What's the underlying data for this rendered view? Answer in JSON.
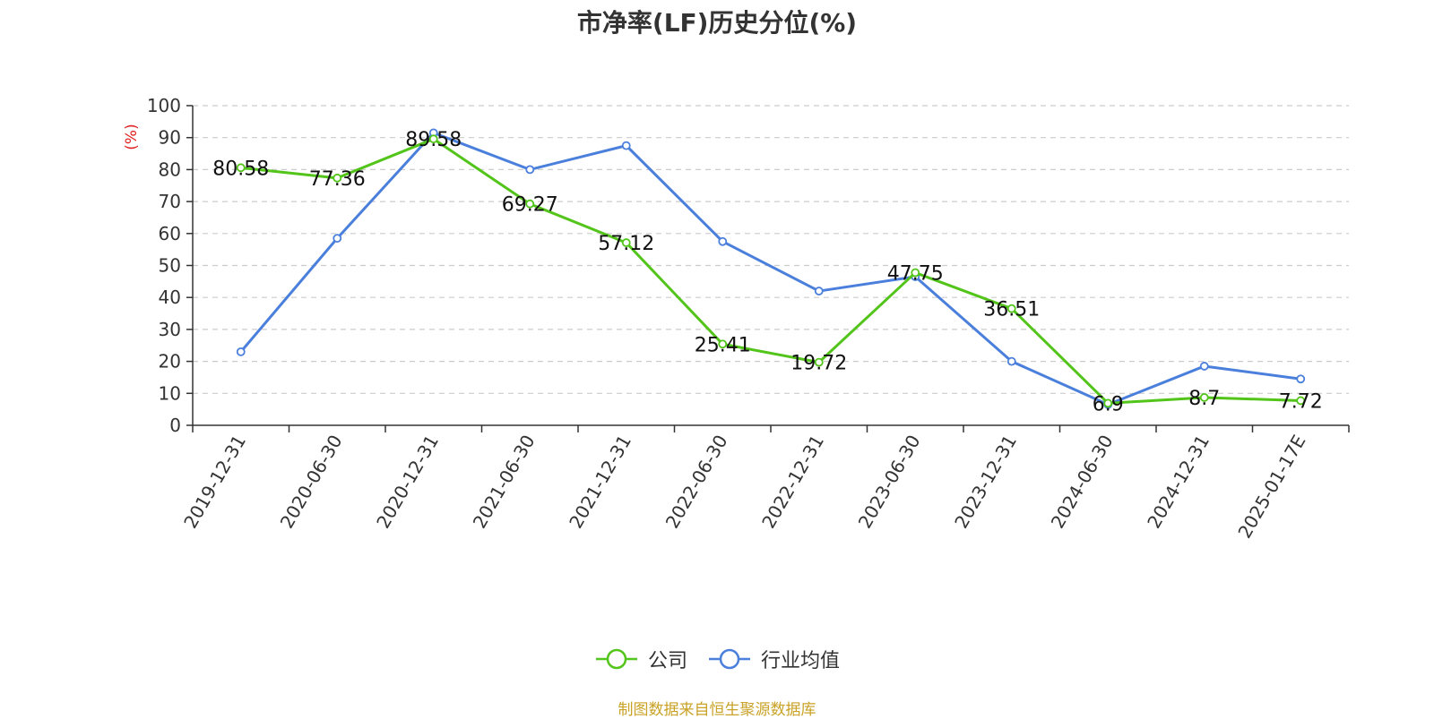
{
  "chart_data": {
    "type": "line",
    "title": "市净率(LF)历史分位(%)",
    "ylabel": "(%)",
    "xlabel": "",
    "categories": [
      "2019-12-31",
      "2020-06-30",
      "2020-12-31",
      "2021-06-30",
      "2021-12-31",
      "2022-06-30",
      "2022-12-31",
      "2023-06-30",
      "2023-12-31",
      "2024-06-30",
      "2024-12-31",
      "2025-01-17E"
    ],
    "ylim": [
      0,
      100
    ],
    "yticks": [
      0,
      10,
      20,
      30,
      40,
      50,
      60,
      70,
      80,
      90,
      100
    ],
    "grid": true,
    "legend_position": "bottom",
    "series": [
      {
        "name": "公司",
        "color": "#52c41a",
        "values": [
          80.58,
          77.36,
          89.58,
          69.27,
          57.12,
          25.41,
          19.72,
          47.75,
          36.51,
          6.9,
          8.7,
          7.72
        ],
        "labels": [
          "80.58",
          "77.36",
          "89.58",
          "69.27",
          "57.12",
          "25.41",
          "19.72",
          "47.75",
          "36.51",
          "6.9",
          "8.7",
          "7.72"
        ]
      },
      {
        "name": "行业均值",
        "color": "#4a7fdc",
        "values": [
          23,
          58.5,
          91.5,
          80,
          87.5,
          57.5,
          42,
          46.5,
          20,
          6.5,
          18.5,
          14.5
        ]
      }
    ]
  },
  "source_note": "制图数据来自恒生聚源数据库"
}
